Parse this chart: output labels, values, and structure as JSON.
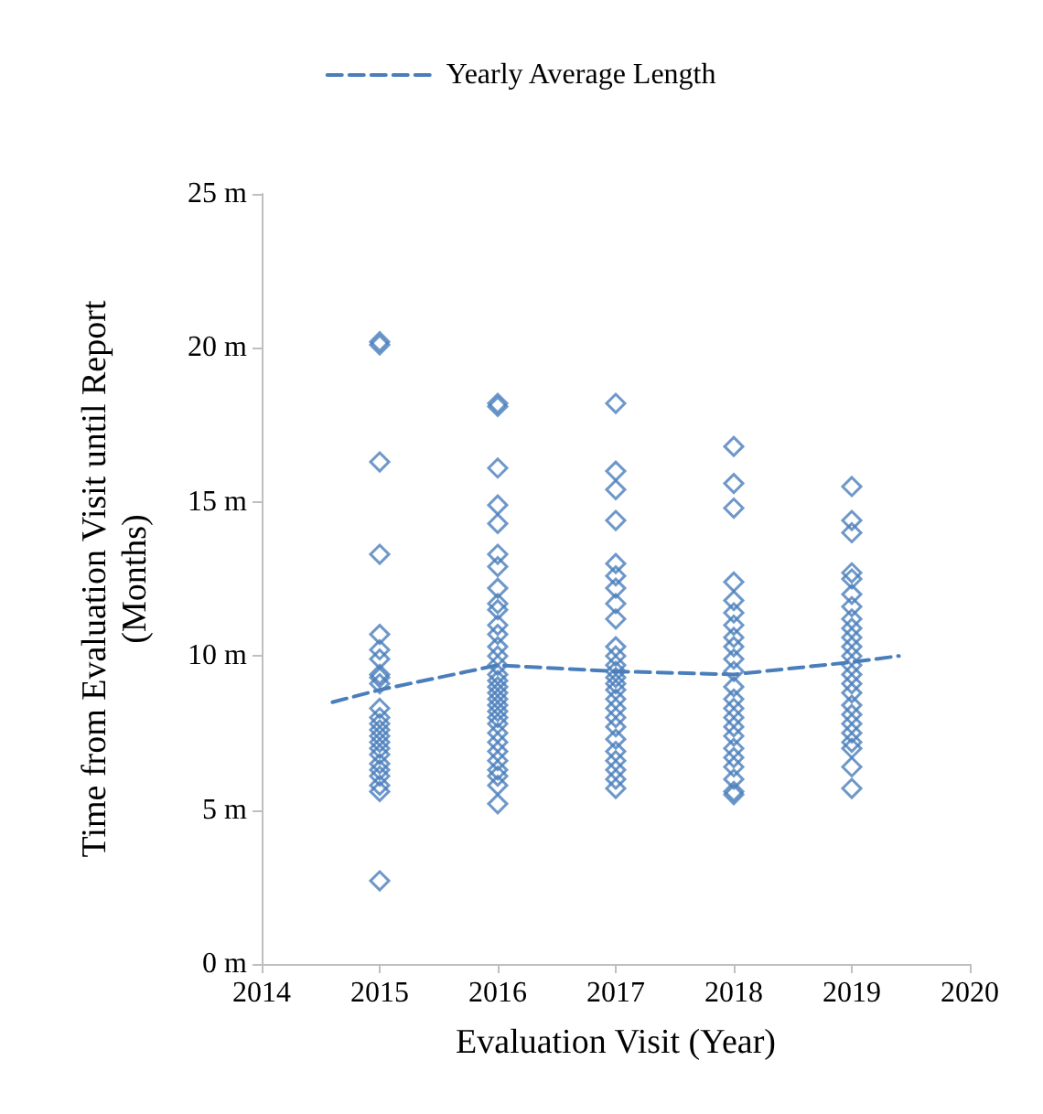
{
  "chart_data": {
    "type": "scatter",
    "xlabel": "Evaluation Visit (Year)",
    "ylabel": "Time from Evaluation Visit until Report\n(Months)",
    "xlim": [
      2014,
      2020
    ],
    "xticks": [
      2014,
      2015,
      2016,
      2017,
      2018,
      2019,
      2020
    ],
    "ylim": [
      0,
      25
    ],
    "yticks": [
      {
        "value": 0,
        "label": "0 m"
      },
      {
        "value": 5,
        "label": "5 m"
      },
      {
        "value": 10,
        "label": "10 m"
      },
      {
        "value": 15,
        "label": "15 m"
      },
      {
        "value": 20,
        "label": "20 m"
      },
      {
        "value": 25,
        "label": "25 m"
      }
    ],
    "grid": false,
    "legend": "top",
    "marker": "diamond",
    "series": [
      {
        "color": "#4a7ebb",
        "x": [
          2015,
          2015,
          2015,
          2015,
          2015,
          2015,
          2015,
          2015,
          2015,
          2015,
          2015,
          2015,
          2015,
          2015,
          2015,
          2015,
          2015,
          2015,
          2015,
          2015,
          2015,
          2015,
          2015,
          2015,
          2016,
          2016,
          2016,
          2016,
          2016,
          2016,
          2016,
          2016,
          2016,
          2016,
          2016,
          2016,
          2016,
          2016,
          2016,
          2016,
          2016,
          2016,
          2016,
          2016,
          2016,
          2016,
          2016,
          2016,
          2016,
          2016,
          2016,
          2016,
          2016,
          2016,
          2016,
          2016,
          2017,
          2017,
          2017,
          2017,
          2017,
          2017,
          2017,
          2017,
          2017,
          2017,
          2017,
          2017,
          2017,
          2017,
          2017,
          2017,
          2017,
          2017,
          2017,
          2017,
          2017,
          2017,
          2017,
          2017,
          2017,
          2017,
          2018,
          2018,
          2018,
          2018,
          2018,
          2018,
          2018,
          2018,
          2018,
          2018,
          2018,
          2018,
          2018,
          2018,
          2018,
          2018,
          2018,
          2018,
          2018,
          2018,
          2018,
          2018,
          2018,
          2019,
          2019,
          2019,
          2019,
          2019,
          2019,
          2019,
          2019,
          2019,
          2019,
          2019,
          2019,
          2019,
          2019,
          2019,
          2019,
          2019,
          2019,
          2019,
          2019,
          2019,
          2019,
          2019,
          2019
        ],
        "values": [
          20.2,
          20.1,
          16.3,
          13.3,
          10.7,
          10.2,
          9.9,
          9.4,
          9.3,
          9.1,
          8.3,
          8.0,
          7.8,
          7.6,
          7.4,
          7.2,
          7.0,
          6.8,
          6.5,
          6.3,
          6.1,
          5.8,
          5.6,
          2.7,
          18.2,
          18.1,
          16.1,
          14.9,
          14.3,
          13.3,
          12.9,
          12.2,
          11.7,
          11.5,
          11.0,
          10.7,
          10.3,
          10.0,
          9.7,
          9.4,
          9.2,
          9.0,
          8.8,
          8.6,
          8.4,
          8.2,
          8.0,
          7.8,
          7.5,
          7.2,
          6.9,
          6.6,
          6.3,
          6.1,
          5.8,
          5.2,
          18.2,
          16.0,
          15.4,
          14.4,
          13.0,
          12.6,
          12.2,
          11.7,
          11.2,
          10.3,
          10.0,
          9.7,
          9.5,
          9.3,
          9.1,
          8.9,
          8.6,
          8.3,
          8.0,
          7.7,
          7.3,
          6.9,
          6.6,
          6.3,
          6.0,
          5.7,
          16.8,
          15.6,
          14.8,
          12.4,
          11.8,
          11.4,
          11.0,
          10.6,
          10.3,
          9.9,
          9.5,
          9.0,
          8.6,
          8.3,
          8.0,
          7.7,
          7.4,
          7.0,
          6.7,
          6.4,
          6.0,
          5.6,
          5.5,
          15.5,
          14.4,
          14.0,
          12.7,
          12.5,
          12.0,
          11.6,
          11.2,
          10.9,
          10.6,
          10.3,
          10.0,
          9.7,
          9.4,
          9.1,
          8.8,
          8.4,
          8.1,
          7.8,
          7.5,
          7.2,
          7.0,
          6.4,
          5.7
        ]
      },
      {
        "type": "line",
        "name": "Yearly Average Length",
        "color": "#4a7ebb",
        "line_style": "dashed",
        "marker": "none",
        "x": [
          2014.6,
          2015,
          2016,
          2017,
          2018,
          2019,
          2019.4
        ],
        "values": [
          8.5,
          8.9,
          9.7,
          9.5,
          9.4,
          9.8,
          10.0
        ]
      }
    ]
  }
}
